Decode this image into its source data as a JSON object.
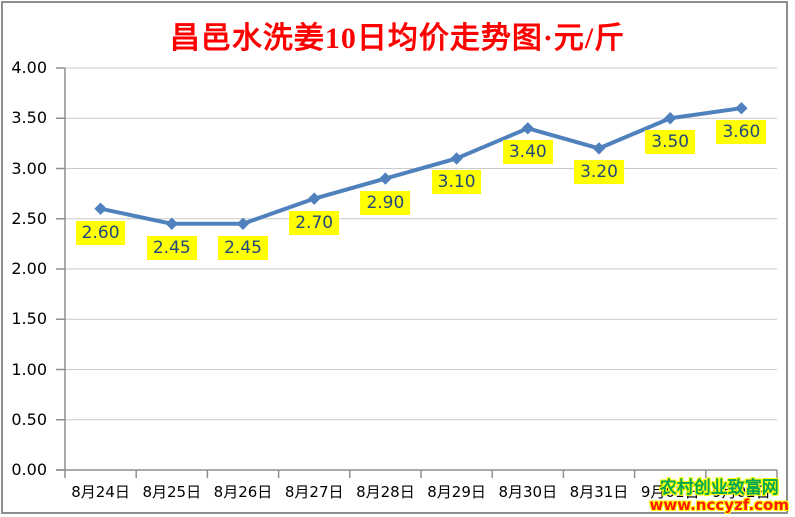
{
  "chart_data": {
    "type": "line",
    "title": "昌邑水洗姜10日均价走势图·元/斤",
    "categories": [
      "8月24日",
      "8月25日",
      "8月26日",
      "8月27日",
      "8月28日",
      "8月29日",
      "8月30日",
      "8月31日",
      "9月01日",
      "9月02日"
    ],
    "values": [
      2.6,
      2.45,
      2.45,
      2.7,
      2.9,
      3.1,
      3.4,
      3.2,
      3.5,
      3.6
    ],
    "point_labels": [
      "2.60",
      "2.45",
      "2.45",
      "2.70",
      "2.90",
      "3.10",
      "3.40",
      "3.20",
      "3.50",
      "3.60"
    ],
    "xlabel": "",
    "ylabel": "",
    "ylim": [
      0,
      4
    ],
    "ytick_step": 0.5,
    "ytick_labels": [
      "0.00",
      "0.50",
      "1.00",
      "1.50",
      "2.00",
      "2.50",
      "3.00",
      "3.50",
      "4.00"
    ],
    "grid": true,
    "legend_position": "none",
    "colors": {
      "line": "#4F81BD",
      "marker": "#4F81BD",
      "label_bg": "#FFFF00",
      "label_text": "#1F497D",
      "title": "#FF0000",
      "grid": "#C9C9C9",
      "axis": "#8F8F8F",
      "tick_text": "#000000"
    }
  },
  "watermark": {
    "site_name": "农村创业致富网",
    "url": "www.nccyzf.com",
    "name_color": "#00A651",
    "url_color": "#FF1A00"
  }
}
